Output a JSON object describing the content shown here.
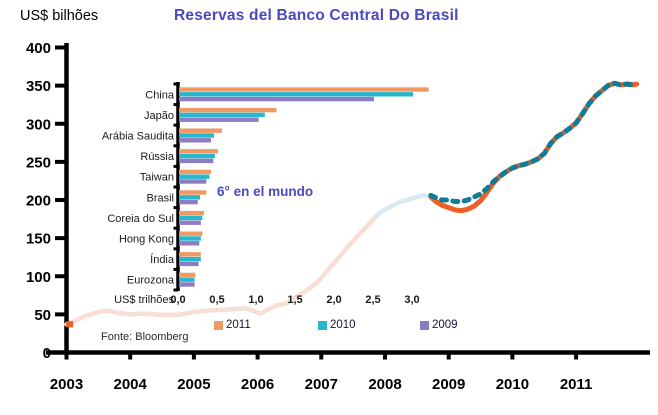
{
  "header": {
    "unit_label": "US$ bilhões",
    "title": "Reservas del Banco Central Do Brasil"
  },
  "inset": {
    "annotation": "6° en el mundo",
    "axis_label": "US$ trilhões",
    "source": "Fonte: Bloomberg",
    "legend": [
      {
        "label": "2011",
        "color": "#f09a63"
      },
      {
        "label": "2010",
        "color": "#29b7ce"
      },
      {
        "label": "2009",
        "color": "#8e7cc3"
      }
    ]
  },
  "colors": {
    "title": "#4b49be",
    "axis": "#000000",
    "line_2003_2008": "#f8ded4",
    "line_2008": "#d9e9ef",
    "line_solid": "#ee5f26",
    "line_dashed": "#0f7d96",
    "bar_2011": "#f09a63",
    "bar_2010": "#29b7ce",
    "bar_2009": "#8e7cc3"
  },
  "chart_data": [
    {
      "type": "line",
      "title": "Reservas del Banco Central Do Brasil",
      "ylabel": "US$ bilhões",
      "ylim": [
        0,
        400
      ],
      "yticks": [
        0,
        50,
        100,
        150,
        200,
        250,
        300,
        350,
        400
      ],
      "xlim": [
        2003,
        2012
      ],
      "xticks": [
        2003,
        2004,
        2005,
        2006,
        2007,
        2008,
        2009,
        2010,
        2011
      ],
      "grid": false,
      "legend_position": "none",
      "start_marker": {
        "x": 2003.05,
        "y": 37,
        "color": "#ee5f26"
      },
      "series": [
        {
          "name": "reservas-2003-2008",
          "color": "#f8ded4",
          "width": 4.5,
          "x": [
            2003.0,
            2003.15,
            2003.3,
            2003.5,
            2003.65,
            2003.8,
            2004.0,
            2004.2,
            2004.4,
            2004.6,
            2004.8,
            2005.0,
            2005.2,
            2005.5,
            2005.8,
            2005.95,
            2006.05,
            2006.15,
            2006.3,
            2006.45,
            2006.6,
            2006.8,
            2006.95,
            2007.1,
            2007.25,
            2007.4,
            2007.55,
            2007.7,
            2007.85
          ],
          "y": [
            37,
            42,
            48,
            53,
            55,
            52,
            50,
            51,
            50,
            49,
            50,
            53,
            55,
            56,
            58,
            54,
            51,
            56,
            62,
            64,
            73,
            83,
            93,
            108,
            122,
            137,
            151,
            164,
            178
          ]
        },
        {
          "name": "reservas-2008-crisis",
          "color": "#d9e9ef",
          "width": 4.5,
          "x": [
            2007.85,
            2007.95,
            2008.1,
            2008.25,
            2008.4,
            2008.5,
            2008.6,
            2008.7,
            2008.78
          ],
          "y": [
            178,
            185,
            192,
            198,
            201,
            204,
            206,
            205,
            202
          ]
        },
        {
          "name": "reservas-2009-2011-solid",
          "color": "#ee5f26",
          "width": 5,
          "x": [
            2008.72,
            2008.8,
            2008.9,
            2009.0,
            2009.1,
            2009.2,
            2009.3,
            2009.4,
            2009.5,
            2009.6,
            2009.7,
            2009.8,
            2009.9,
            2010.0,
            2010.1,
            2010.2,
            2010.3,
            2010.4,
            2010.5,
            2010.6,
            2010.7,
            2010.8,
            2010.9,
            2011.0,
            2011.1,
            2011.2,
            2011.3,
            2011.4,
            2011.5,
            2011.6,
            2011.7,
            2011.8,
            2011.9,
            2011.95
          ],
          "y": [
            204,
            198,
            193,
            190,
            187,
            186,
            188,
            192,
            199,
            210,
            222,
            231,
            237,
            242,
            245,
            247,
            250,
            254,
            261,
            274,
            283,
            288,
            294,
            301,
            313,
            326,
            336,
            343,
            350,
            353,
            351,
            352,
            351,
            352
          ]
        },
        {
          "name": "reservas-2009-2011-dashed",
          "color": "#0f7d96",
          "width": 5,
          "dash": "5 6.5",
          "x": [
            2008.72,
            2008.8,
            2008.9,
            2009.0,
            2009.1,
            2009.2,
            2009.3,
            2009.4,
            2009.5,
            2009.6,
            2009.7,
            2009.8,
            2009.9,
            2010.0,
            2010.1,
            2010.2,
            2010.3,
            2010.4,
            2010.5,
            2010.6,
            2010.7,
            2010.8,
            2010.9,
            2011.0,
            2011.1,
            2011.2,
            2011.3,
            2011.4,
            2011.5,
            2011.6,
            2011.7,
            2011.8,
            2011.9,
            2011.95
          ],
          "y": [
            206,
            203,
            200,
            200,
            198,
            198,
            200,
            204,
            208,
            215,
            224,
            231,
            237,
            242,
            245,
            247,
            250,
            254,
            261,
            274,
            283,
            288,
            294,
            301,
            313,
            326,
            336,
            343,
            350,
            353,
            351,
            352,
            351,
            352
          ]
        }
      ]
    },
    {
      "type": "bar",
      "orientation": "horizontal",
      "categories": [
        "China",
        "Japão",
        "Arábia Saudita",
        "Rússia",
        "Taiwan",
        "Brasil",
        "Coreia do Sul",
        "Hong Kong",
        "Índia",
        "Eurozona"
      ],
      "series": [
        {
          "name": "2011",
          "color": "#f09a63",
          "values": [
            3.2,
            1.25,
            0.55,
            0.5,
            0.41,
            0.35,
            0.32,
            0.3,
            0.28,
            0.21
          ]
        },
        {
          "name": "2010",
          "color": "#29b7ce",
          "values": [
            3.0,
            1.1,
            0.45,
            0.46,
            0.39,
            0.27,
            0.3,
            0.28,
            0.28,
            0.2
          ]
        },
        {
          "name": "2009",
          "color": "#8e7cc3",
          "values": [
            2.5,
            1.02,
            0.41,
            0.44,
            0.35,
            0.24,
            0.28,
            0.26,
            0.25,
            0.2
          ]
        }
      ],
      "xlabel": "US$ trilhões",
      "xlim": [
        0,
        3.3
      ],
      "xticks": [
        {
          "v": 0.0,
          "label": "0,0"
        },
        {
          "v": 0.5,
          "label": "0,5"
        },
        {
          "v": 1.0,
          "label": "1,0"
        },
        {
          "v": 1.5,
          "label": "1,5"
        },
        {
          "v": 2.0,
          "label": "2,0"
        },
        {
          "v": 2.5,
          "label": "2,5"
        },
        {
          "v": 3.0,
          "label": "3,0"
        }
      ],
      "annotation": "6° en el mundo",
      "legend_position": "bottom",
      "source": "Fonte: Bloomberg"
    }
  ]
}
